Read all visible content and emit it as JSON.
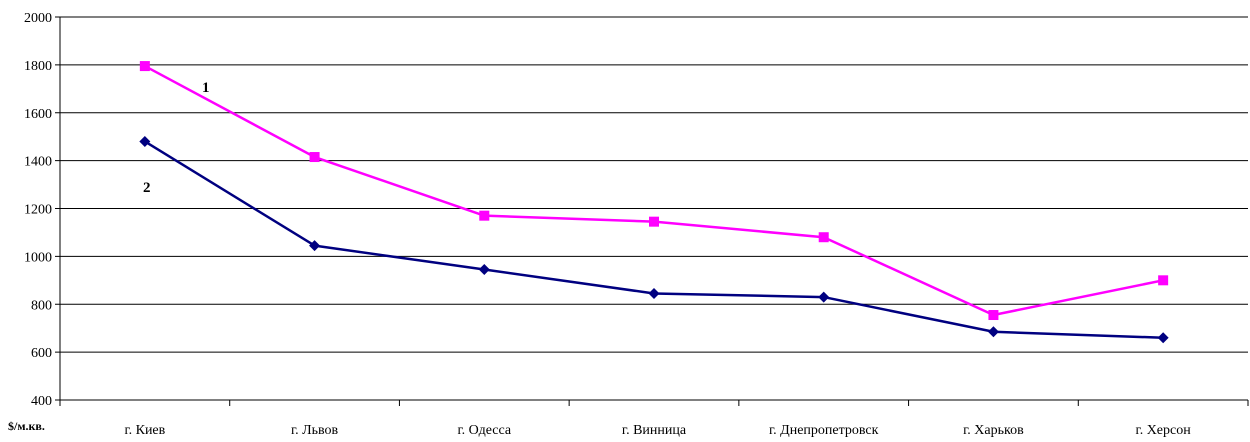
{
  "chart_data": {
    "type": "line",
    "categories": [
      "г. Киев",
      "г. Львов",
      "г. Одесса",
      "г. Винница",
      "г. Днепропетровск",
      "г. Харьков",
      "г. Херсон"
    ],
    "series": [
      {
        "name": "1",
        "color": "#ff00ff",
        "marker": "square",
        "values": [
          1795,
          1415,
          1170,
          1145,
          1080,
          755,
          900
        ]
      },
      {
        "name": "2",
        "color": "#000080",
        "marker": "diamond",
        "values": [
          1480,
          1045,
          945,
          845,
          830,
          685,
          660
        ]
      }
    ],
    "ylim": [
      400,
      2000
    ],
    "yticks": [
      400,
      600,
      800,
      1000,
      1200,
      1400,
      1600,
      1800,
      2000
    ],
    "ylabel": "$/м.кв.",
    "grid": true,
    "legend": "none"
  }
}
